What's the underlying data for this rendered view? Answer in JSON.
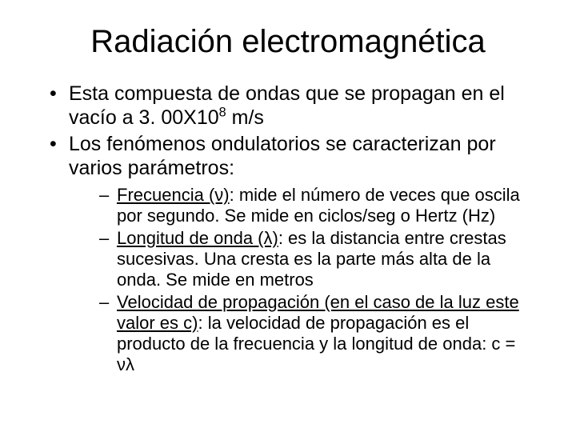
{
  "background_color": "#ffffff",
  "text_color": "#000000",
  "title": {
    "text": "Radiación electromagnética",
    "fontsize": 40,
    "align": "center"
  },
  "bullets": {
    "fontsize_level1": 25,
    "fontsize_level2": 22,
    "b1_pre": "Esta compuesta de ondas que se propagan en el vacío a 3. 00X10",
    "b1_sup": "8",
    "b1_post": " m/s",
    "b2": "Los fenómenos ondulatorios se caracterizan por varios parámetros:",
    "s1_term": "Frecuencia (ν)",
    "s1_rest": ": mide el número de veces que oscila por segundo. Se mide en ciclos/seg o Hertz (Hz)",
    "s2_term": "Longitud de onda (λ)",
    "s2_rest": ": es la distancia entre crestas sucesivas. Una cresta es la parte más alta de la onda. Se mide en metros",
    "s3_term": "Velocidad de propagación (en el caso de la luz este valor es c)",
    "s3_rest": ": la velocidad de propagación es el producto de la frecuencia y la longitud de onda: c = νλ"
  }
}
